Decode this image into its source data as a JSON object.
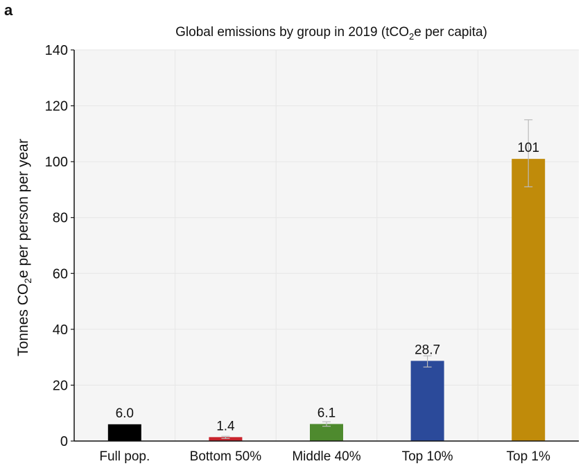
{
  "panel_label": "a",
  "chart_data": {
    "type": "bar",
    "title": "Global emissions by group in 2019 (tCO₂e per capita)",
    "title_parts": [
      "Global emissions by group in 2019 (tCO",
      "2",
      "e per capita)"
    ],
    "ylabel_parts": [
      "Tonnes CO",
      "2",
      "e per person per year"
    ],
    "xlabel": "",
    "ylim": [
      0,
      140
    ],
    "yticks": [
      0,
      20,
      40,
      60,
      80,
      100,
      120,
      140
    ],
    "grid": true,
    "categories": [
      "Full pop.",
      "Bottom 50%",
      "Middle 40%",
      "Top 10%",
      "Top 1%"
    ],
    "values": [
      6.0,
      1.4,
      6.1,
      28.7,
      101
    ],
    "value_labels": [
      "6.0",
      "1.4",
      "6.1",
      "28.7",
      "101"
    ],
    "error_low": [
      null,
      0.9,
      5.3,
      26.5,
      91
    ],
    "error_high": [
      null,
      1.7,
      6.9,
      30.5,
      115
    ],
    "colors": [
      "#000000",
      "#c8232c",
      "#4e8a2e",
      "#2b4a9a",
      "#c08b0a"
    ],
    "error_bar_color": "#bbbbbb",
    "grid_color": "#e6e6e6",
    "plot_background": "#f5f5f5"
  }
}
